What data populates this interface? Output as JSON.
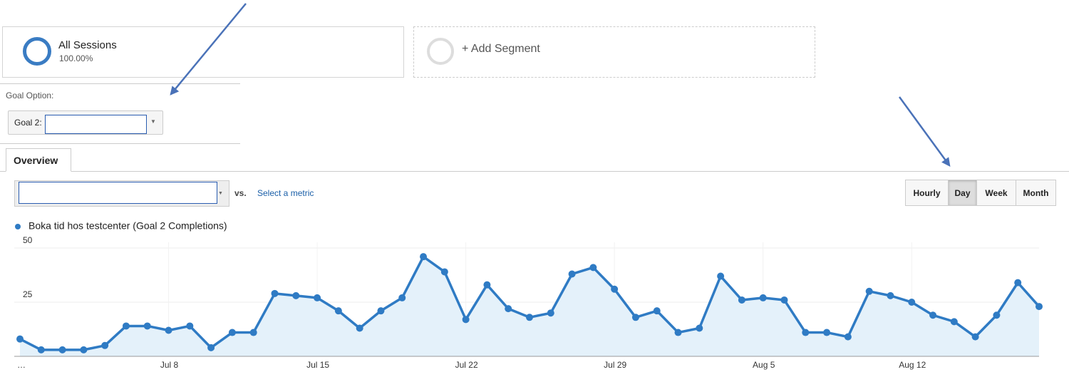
{
  "segments": [
    {
      "title": "All Sessions",
      "subtitle": "100.00%"
    },
    {
      "title": "+ Add Segment"
    }
  ],
  "goal_option": {
    "label": "Goal Option:",
    "select": "Goal 2:"
  },
  "tabs": [
    "Overview"
  ],
  "controls": {
    "vs": "vs.",
    "select_metric": "Select a metric",
    "granularity": [
      "Hourly",
      "Day",
      "Week",
      "Month"
    ]
  },
  "chart_data": {
    "type": "line",
    "color_fill": "#e4f1fa",
    "categories": [
      "…",
      null,
      null,
      null,
      null,
      null,
      null,
      "Jul 8",
      null,
      null,
      null,
      null,
      null,
      null,
      "Jul 15",
      null,
      null,
      null,
      null,
      null,
      null,
      "Jul 22",
      null,
      null,
      null,
      null,
      null,
      null,
      "Jul 29",
      null,
      null,
      null,
      null,
      null,
      null,
      "Aug 5",
      null,
      null,
      null,
      null,
      null,
      null,
      "Aug 12",
      null,
      null,
      null,
      null,
      null,
      null
    ],
    "series": [
      {
        "name": "Boka tid hos testcenter (Goal 2 Completions)",
        "color": "#2f7bc4",
        "values": [
          8,
          3,
          3,
          3,
          5,
          14,
          14,
          12,
          14,
          4,
          11,
          11,
          29,
          28,
          27,
          21,
          13,
          21,
          27,
          46,
          39,
          17,
          33,
          22,
          18,
          20,
          38,
          41,
          31,
          18,
          21,
          11,
          13,
          37,
          26,
          27,
          26,
          11,
          11,
          9,
          30,
          28,
          25,
          19,
          16,
          9,
          19,
          34,
          23
        ]
      }
    ],
    "ylim": [
      0,
      50
    ],
    "yticks": [
      25,
      50
    ],
    "grid": true
  }
}
